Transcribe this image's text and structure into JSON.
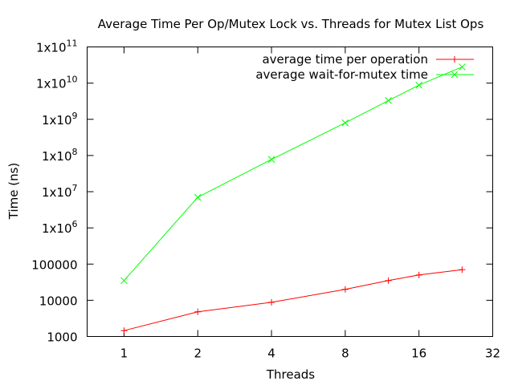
{
  "chart_data": {
    "type": "line",
    "title": "Average Time Per Op/Mutex Lock vs. Threads for Mutex List Ops",
    "xlabel": "Threads",
    "ylabel": "Time (ns)",
    "x_scale": "log2",
    "y_scale": "log10",
    "xlim": [
      0.707,
      32
    ],
    "ylim": [
      1000,
      100000000000
    ],
    "grid": false,
    "legend_position": "top-right",
    "x_ticks": [
      {
        "value": 1,
        "label": "1"
      },
      {
        "value": 2,
        "label": "2"
      },
      {
        "value": 4,
        "label": "4"
      },
      {
        "value": 8,
        "label": "8"
      },
      {
        "value": 16,
        "label": "16"
      },
      {
        "value": 32,
        "label": "32"
      }
    ],
    "y_ticks": [
      {
        "value": 1000,
        "label": "1000",
        "base": null,
        "exp": null
      },
      {
        "value": 10000,
        "label": "10000",
        "base": null,
        "exp": null
      },
      {
        "value": 100000,
        "label": "100000",
        "base": null,
        "exp": null
      },
      {
        "value": 1000000,
        "label": "",
        "base": "1x10",
        "exp": "6"
      },
      {
        "value": 10000000,
        "label": "",
        "base": "1x10",
        "exp": "7"
      },
      {
        "value": 100000000,
        "label": "",
        "base": "1x10",
        "exp": "8"
      },
      {
        "value": 1000000000,
        "label": "",
        "base": "1x10",
        "exp": "9"
      },
      {
        "value": 10000000000,
        "label": "",
        "base": "1x10",
        "exp": "10"
      },
      {
        "value": 100000000000,
        "label": "",
        "base": "1x10",
        "exp": "11"
      }
    ],
    "series": [
      {
        "name": "average time per operation",
        "color": "#ff0000",
        "marker": "plus",
        "x": [
          1,
          2,
          4,
          8,
          12,
          16,
          24
        ],
        "values": [
          1450,
          4800,
          8800,
          20000,
          35000,
          50000,
          70000
        ]
      },
      {
        "name": "average wait-for-mutex time",
        "color": "#00ff00",
        "marker": "cross",
        "x": [
          1,
          2,
          4,
          8,
          12,
          16,
          24
        ],
        "values": [
          35000,
          7000000,
          78000000,
          800000000,
          3300000000,
          8800000000,
          28000000000
        ]
      }
    ]
  }
}
